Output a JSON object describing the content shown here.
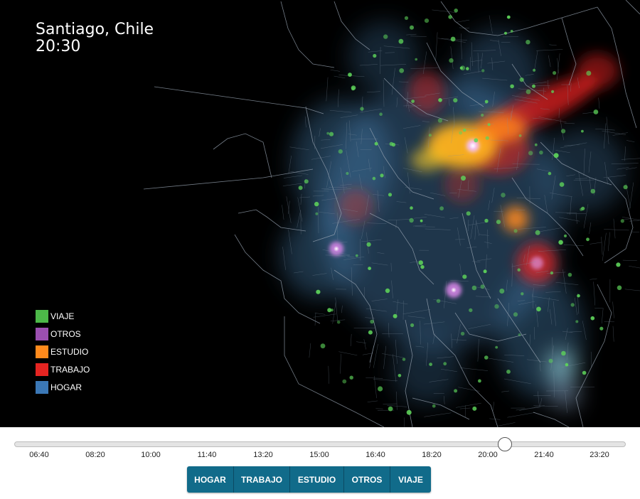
{
  "map": {
    "city": "Santiago, Chile",
    "time": "20:30"
  },
  "legend": [
    {
      "label": "VIAJE",
      "color": "#4cb848"
    },
    {
      "label": "OTROS",
      "color": "#9b4fb0"
    },
    {
      "label": "ESTUDIO",
      "color": "#ff8a1c"
    },
    {
      "label": "TRABAJO",
      "color": "#e52421"
    },
    {
      "label": "HOGAR",
      "color": "#3b78b6"
    }
  ],
  "timeline": {
    "ticks": [
      "06:40",
      "08:20",
      "10:00",
      "11:40",
      "13:20",
      "15:00",
      "16:40",
      "18:20",
      "20:00",
      "21:40",
      "23:20"
    ],
    "current": "20:30"
  },
  "buttons": [
    "HOGAR",
    "TRABAJO",
    "ESTUDIO",
    "OTROS",
    "VIAJE"
  ]
}
